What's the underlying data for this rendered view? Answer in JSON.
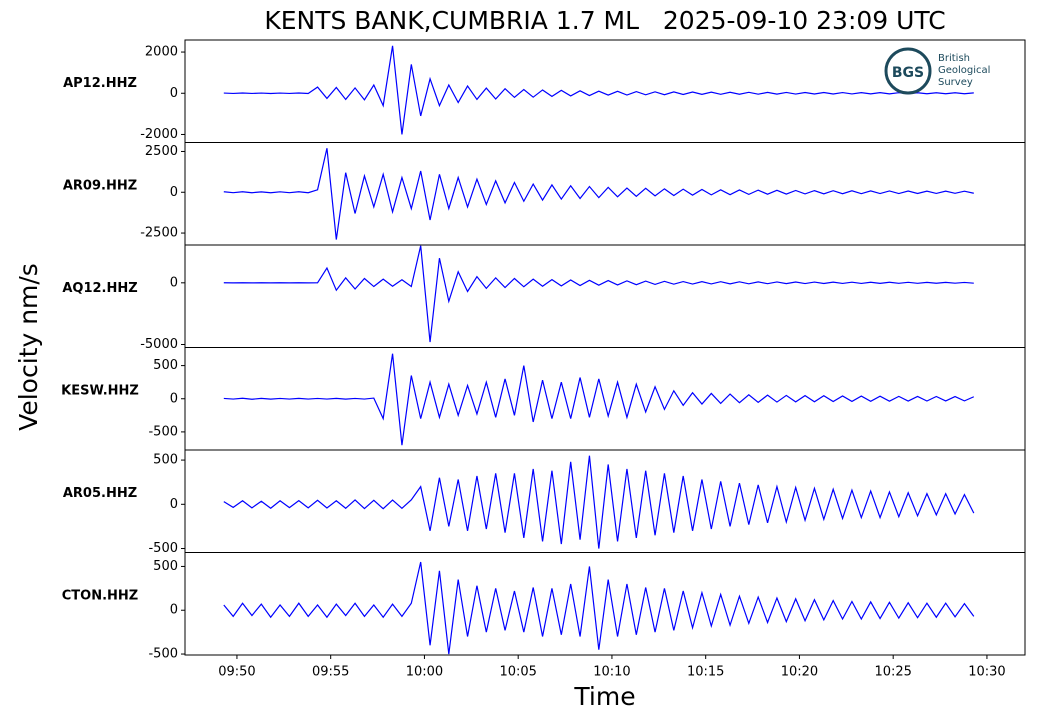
{
  "chart_data": {
    "type": "line",
    "title": "KENTS BANK,CUMBRIA 1.7 ML   2025-09-10 23:09 UTC",
    "xlabel": "Time",
    "ylabel": "Velocity nm/s",
    "color": "#0000ff",
    "x": [
      589.3,
      589.8,
      590.3,
      590.8,
      591.3,
      591.8,
      592.3,
      592.8,
      593.3,
      593.8,
      594.3,
      594.8,
      595.3,
      595.8,
      596.3,
      596.8,
      597.3,
      597.8,
      598.3,
      598.8,
      599.3,
      599.8,
      600.3,
      600.8,
      601.3,
      601.8,
      602.3,
      602.8,
      603.3,
      603.8,
      604.3,
      604.8,
      605.3,
      605.8,
      606.3,
      606.8,
      607.3,
      607.8,
      608.3,
      608.8,
      609.3,
      609.8,
      610.3,
      610.8,
      611.3,
      611.8,
      612.3,
      612.8,
      613.3,
      613.8,
      614.3,
      614.8,
      615.3,
      615.8,
      616.3,
      616.8,
      617.3,
      617.8,
      618.3,
      618.8,
      619.3,
      619.8,
      620.3,
      620.8,
      621.3,
      621.8,
      622.3,
      622.8,
      623.3,
      623.8,
      624.3,
      624.8,
      625.3,
      625.8,
      626.3,
      626.8,
      627.3,
      627.8,
      628.3,
      628.8,
      629.3
    ],
    "xlim": [
      587.23,
      632.03
    ],
    "xticks": [
      {
        "value": 590,
        "label": "09:50"
      },
      {
        "value": 595,
        "label": "09:55"
      },
      {
        "value": 600,
        "label": "10:00"
      },
      {
        "value": 605,
        "label": "10:05"
      },
      {
        "value": 610,
        "label": "10:10"
      },
      {
        "value": 615,
        "label": "10:15"
      },
      {
        "value": 620,
        "label": "10:20"
      },
      {
        "value": 625,
        "label": "10:25"
      },
      {
        "value": 630,
        "label": "10:30"
      }
    ],
    "series": [
      {
        "name": "AP12.HHZ",
        "ylim": [
          -2390,
          2585
        ],
        "yticks": [
          -2000,
          0,
          2000
        ],
        "values": [
          10,
          -8,
          12,
          -10,
          9,
          -11,
          10,
          -9,
          12,
          -10,
          300,
          -250,
          280,
          -300,
          260,
          -320,
          400,
          -600,
          2300,
          -2000,
          1400,
          -1100,
          700,
          -600,
          400,
          -450,
          350,
          -300,
          250,
          -280,
          220,
          -200,
          180,
          -190,
          160,
          -150,
          140,
          -130,
          120,
          -110,
          100,
          -90,
          95,
          -85,
          80,
          -75,
          70,
          -70,
          65,
          -60,
          60,
          -55,
          55,
          -50,
          50,
          -48,
          45,
          -45,
          42,
          -40,
          40,
          -38,
          38,
          -36,
          35,
          -34,
          33,
          -32,
          30,
          -30,
          30,
          -28,
          28,
          -27,
          26,
          -25,
          25,
          -24,
          24,
          -22,
          20
        ]
      },
      {
        "name": "AR09.HHZ",
        "ylim": [
          -3232,
          3049
        ],
        "yticks": [
          -2500,
          0,
          2500
        ],
        "values": [
          30,
          -25,
          30,
          -28,
          25,
          -30,
          28,
          -25,
          30,
          -30,
          150,
          2700,
          -2900,
          1200,
          -1300,
          1000,
          -900,
          1100,
          -1200,
          900,
          -1000,
          1300,
          -1700,
          1100,
          -1000,
          900,
          -900,
          800,
          -750,
          700,
          -650,
          600,
          -550,
          500,
          -480,
          450,
          -420,
          400,
          -380,
          350,
          -330,
          300,
          -280,
          260,
          -250,
          240,
          -220,
          210,
          -200,
          190,
          -180,
          170,
          -160,
          150,
          -150,
          140,
          -130,
          130,
          -120,
          120,
          -110,
          110,
          -100,
          100,
          -95,
          95,
          -90,
          90,
          -85,
          85,
          -80,
          80,
          -80,
          75,
          -75,
          70,
          -70,
          70,
          -65,
          65,
          -60
        ]
      },
      {
        "name": "AQ12.HHZ",
        "ylim": [
          -5242,
          3065
        ],
        "yticks": [
          -5000,
          0
        ],
        "values": [
          5,
          -5,
          5,
          -5,
          5,
          -5,
          5,
          -5,
          5,
          -5,
          5,
          1200,
          -600,
          400,
          -500,
          350,
          -300,
          300,
          -280,
          250,
          -300,
          3000,
          -4800,
          2000,
          -1500,
          900,
          -700,
          500,
          -450,
          400,
          -380,
          350,
          -320,
          300,
          -280,
          260,
          -250,
          230,
          -220,
          200,
          -190,
          180,
          -170,
          160,
          -150,
          140,
          -130,
          120,
          -110,
          100,
          -100,
          95,
          -90,
          90,
          -85,
          80,
          -80,
          75,
          -70,
          70,
          -65,
          65,
          -60,
          60,
          -55,
          55,
          -50,
          50,
          -50,
          45,
          -45,
          45,
          -40,
          40,
          -40,
          35,
          -35,
          35,
          -30,
          30,
          -30
        ]
      },
      {
        "name": "KESW.HHZ",
        "ylim": [
          -773,
          773
        ],
        "yticks": [
          -500,
          0,
          500
        ],
        "values": [
          5,
          -5,
          8,
          -8,
          6,
          -6,
          5,
          -5,
          6,
          -5,
          5,
          -5,
          6,
          -6,
          5,
          -5,
          10,
          -300,
          680,
          -700,
          350,
          -300,
          250,
          -280,
          220,
          -250,
          200,
          -230,
          250,
          -280,
          300,
          -250,
          500,
          -350,
          280,
          -300,
          250,
          -300,
          320,
          -280,
          300,
          -260,
          250,
          -280,
          220,
          -200,
          180,
          -160,
          120,
          -100,
          90,
          -80,
          80,
          -70,
          70,
          -60,
          60,
          -55,
          55,
          -50,
          50,
          -48,
          48,
          -45,
          45,
          -42,
          42,
          -40,
          40,
          -38,
          38,
          -36,
          36,
          -35,
          35,
          -34,
          34,
          -33,
          33,
          -32,
          30
        ]
      },
      {
        "name": "AR05.HHZ",
        "ylim": [
          -545,
          614
        ],
        "yticks": [
          -500,
          0,
          500
        ],
        "values": [
          30,
          -35,
          40,
          -40,
          35,
          -45,
          40,
          -38,
          42,
          -40,
          45,
          -42,
          40,
          -45,
          50,
          -48,
          45,
          -50,
          48,
          -45,
          50,
          200,
          -300,
          300,
          -250,
          280,
          -300,
          320,
          -280,
          350,
          -320,
          350,
          -380,
          400,
          -420,
          380,
          -450,
          480,
          -400,
          550,
          -500,
          450,
          -420,
          400,
          -380,
          380,
          -350,
          350,
          -320,
          320,
          -300,
          280,
          -280,
          260,
          -250,
          240,
          -230,
          220,
          -210,
          200,
          -200,
          190,
          -180,
          180,
          -170,
          170,
          -160,
          160,
          -150,
          150,
          -150,
          140,
          -140,
          130,
          -130,
          120,
          -120,
          120,
          -110,
          110,
          -100
        ]
      },
      {
        "name": "CTON.HHZ",
        "ylim": [
          -511,
          659
        ],
        "yticks": [
          -500,
          0,
          500
        ],
        "values": [
          60,
          -70,
          80,
          -60,
          70,
          -80,
          60,
          -70,
          80,
          -70,
          60,
          -80,
          70,
          -60,
          80,
          -70,
          60,
          -80,
          70,
          -70,
          80,
          550,
          -400,
          450,
          -500,
          350,
          -300,
          280,
          -250,
          250,
          -230,
          220,
          -250,
          260,
          -300,
          250,
          -280,
          300,
          -300,
          500,
          -450,
          350,
          -300,
          300,
          -280,
          260,
          -250,
          250,
          -230,
          220,
          -200,
          200,
          -180,
          180,
          -170,
          160,
          -150,
          150,
          -140,
          140,
          -130,
          130,
          -120,
          120,
          -110,
          110,
          -100,
          100,
          -100,
          95,
          -95,
          90,
          -90,
          85,
          -85,
          80,
          -80,
          80,
          -75,
          75,
          -70
        ]
      }
    ]
  },
  "logo": {
    "abbr": "BGS",
    "lines": [
      "British",
      "Geological",
      "Survey"
    ]
  }
}
